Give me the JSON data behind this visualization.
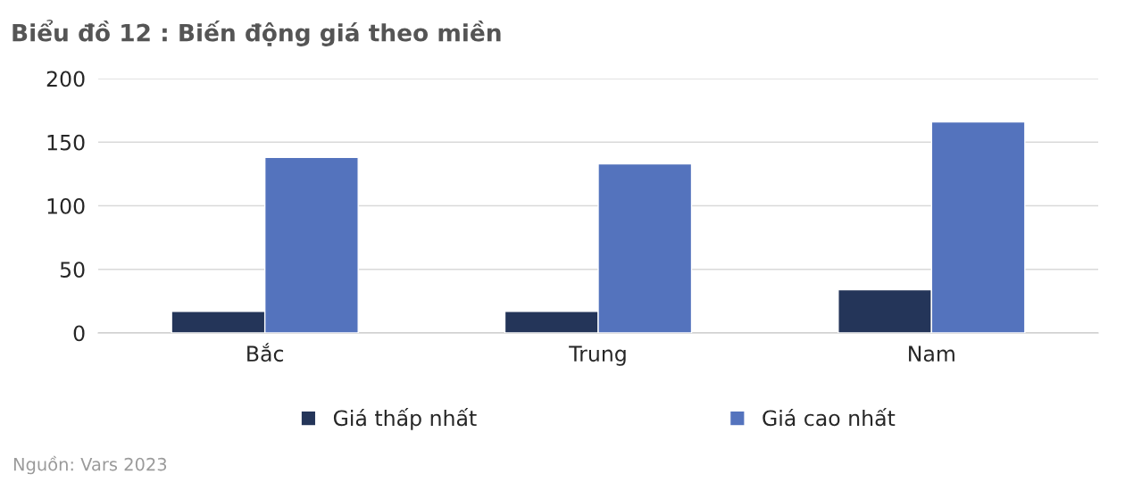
{
  "chart_data": {
    "type": "bar",
    "title": "Biểu đồ 12 : Biến động giá theo miền",
    "categories": [
      "Bắc",
      "Trung",
      "Nam"
    ],
    "series": [
      {
        "name": "Giá thấp nhất",
        "color": "#243559",
        "values": [
          17,
          17,
          34
        ]
      },
      {
        "name": "Giá cao nhất",
        "color": "#5473bd",
        "values": [
          138,
          133,
          166
        ]
      }
    ],
    "ylim": [
      0,
      200
    ],
    "yticks": [
      0,
      50,
      100,
      150,
      200
    ],
    "grid": "y",
    "legend": "bottom",
    "annotations": [
      "Nguồn: Vars 2023"
    ]
  }
}
